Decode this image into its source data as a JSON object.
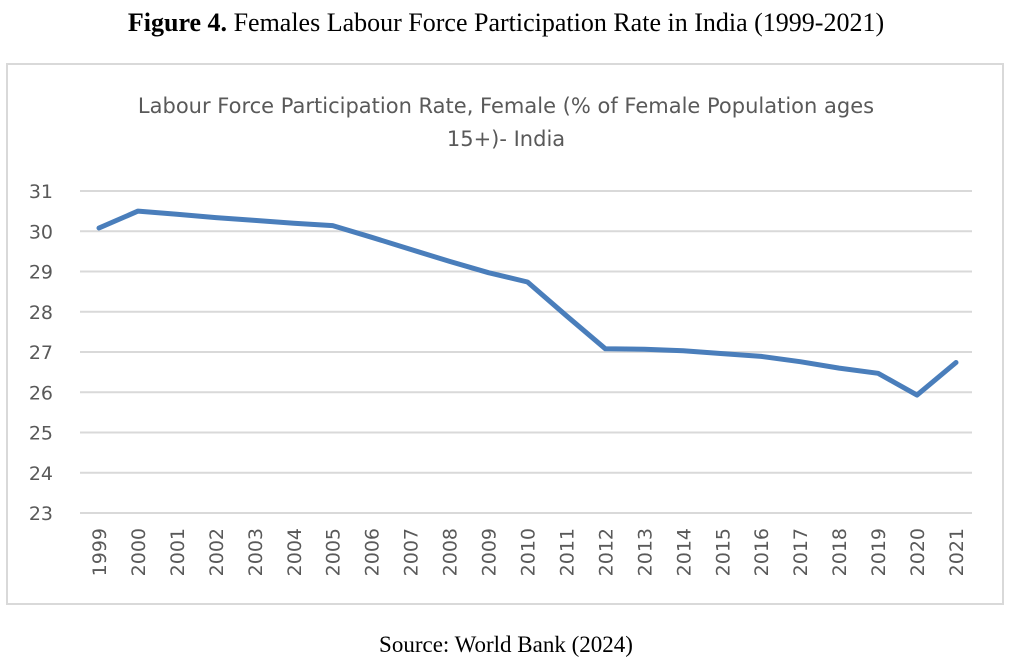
{
  "caption": {
    "label": "Figure 4.",
    "text": " Females Labour Force Participation Rate in India (1999-2021)"
  },
  "source": "Source: World Bank (2024)",
  "chart_data": {
    "type": "line",
    "title_lines": [
      "Labour Force Participation Rate, Female (% of Female Population ages",
      "15+)- India"
    ],
    "xlabel": "",
    "ylabel": "",
    "categories": [
      "1999",
      "2000",
      "2001",
      "2002",
      "2003",
      "2004",
      "2005",
      "2006",
      "2007",
      "2008",
      "2009",
      "2010",
      "2011",
      "2012",
      "2013",
      "2014",
      "2015",
      "2016",
      "2017",
      "2018",
      "2019",
      "2020",
      "2021"
    ],
    "series": [
      {
        "name": "Labour Force Participation Rate, Female",
        "color": "#4a7ebb",
        "values": [
          30.08,
          30.5,
          30.42,
          30.34,
          30.27,
          30.2,
          30.14,
          29.85,
          29.55,
          29.25,
          28.97,
          28.74,
          27.9,
          27.08,
          27.07,
          27.03,
          26.96,
          26.89,
          26.76,
          26.6,
          26.47,
          25.93,
          26.74
        ]
      }
    ],
    "ylim": [
      23,
      31
    ],
    "yticks": [
      23,
      24,
      25,
      26,
      27,
      28,
      29,
      30,
      31
    ],
    "grid": true,
    "gridline_color": "#d9d9d9",
    "legend": "none"
  }
}
